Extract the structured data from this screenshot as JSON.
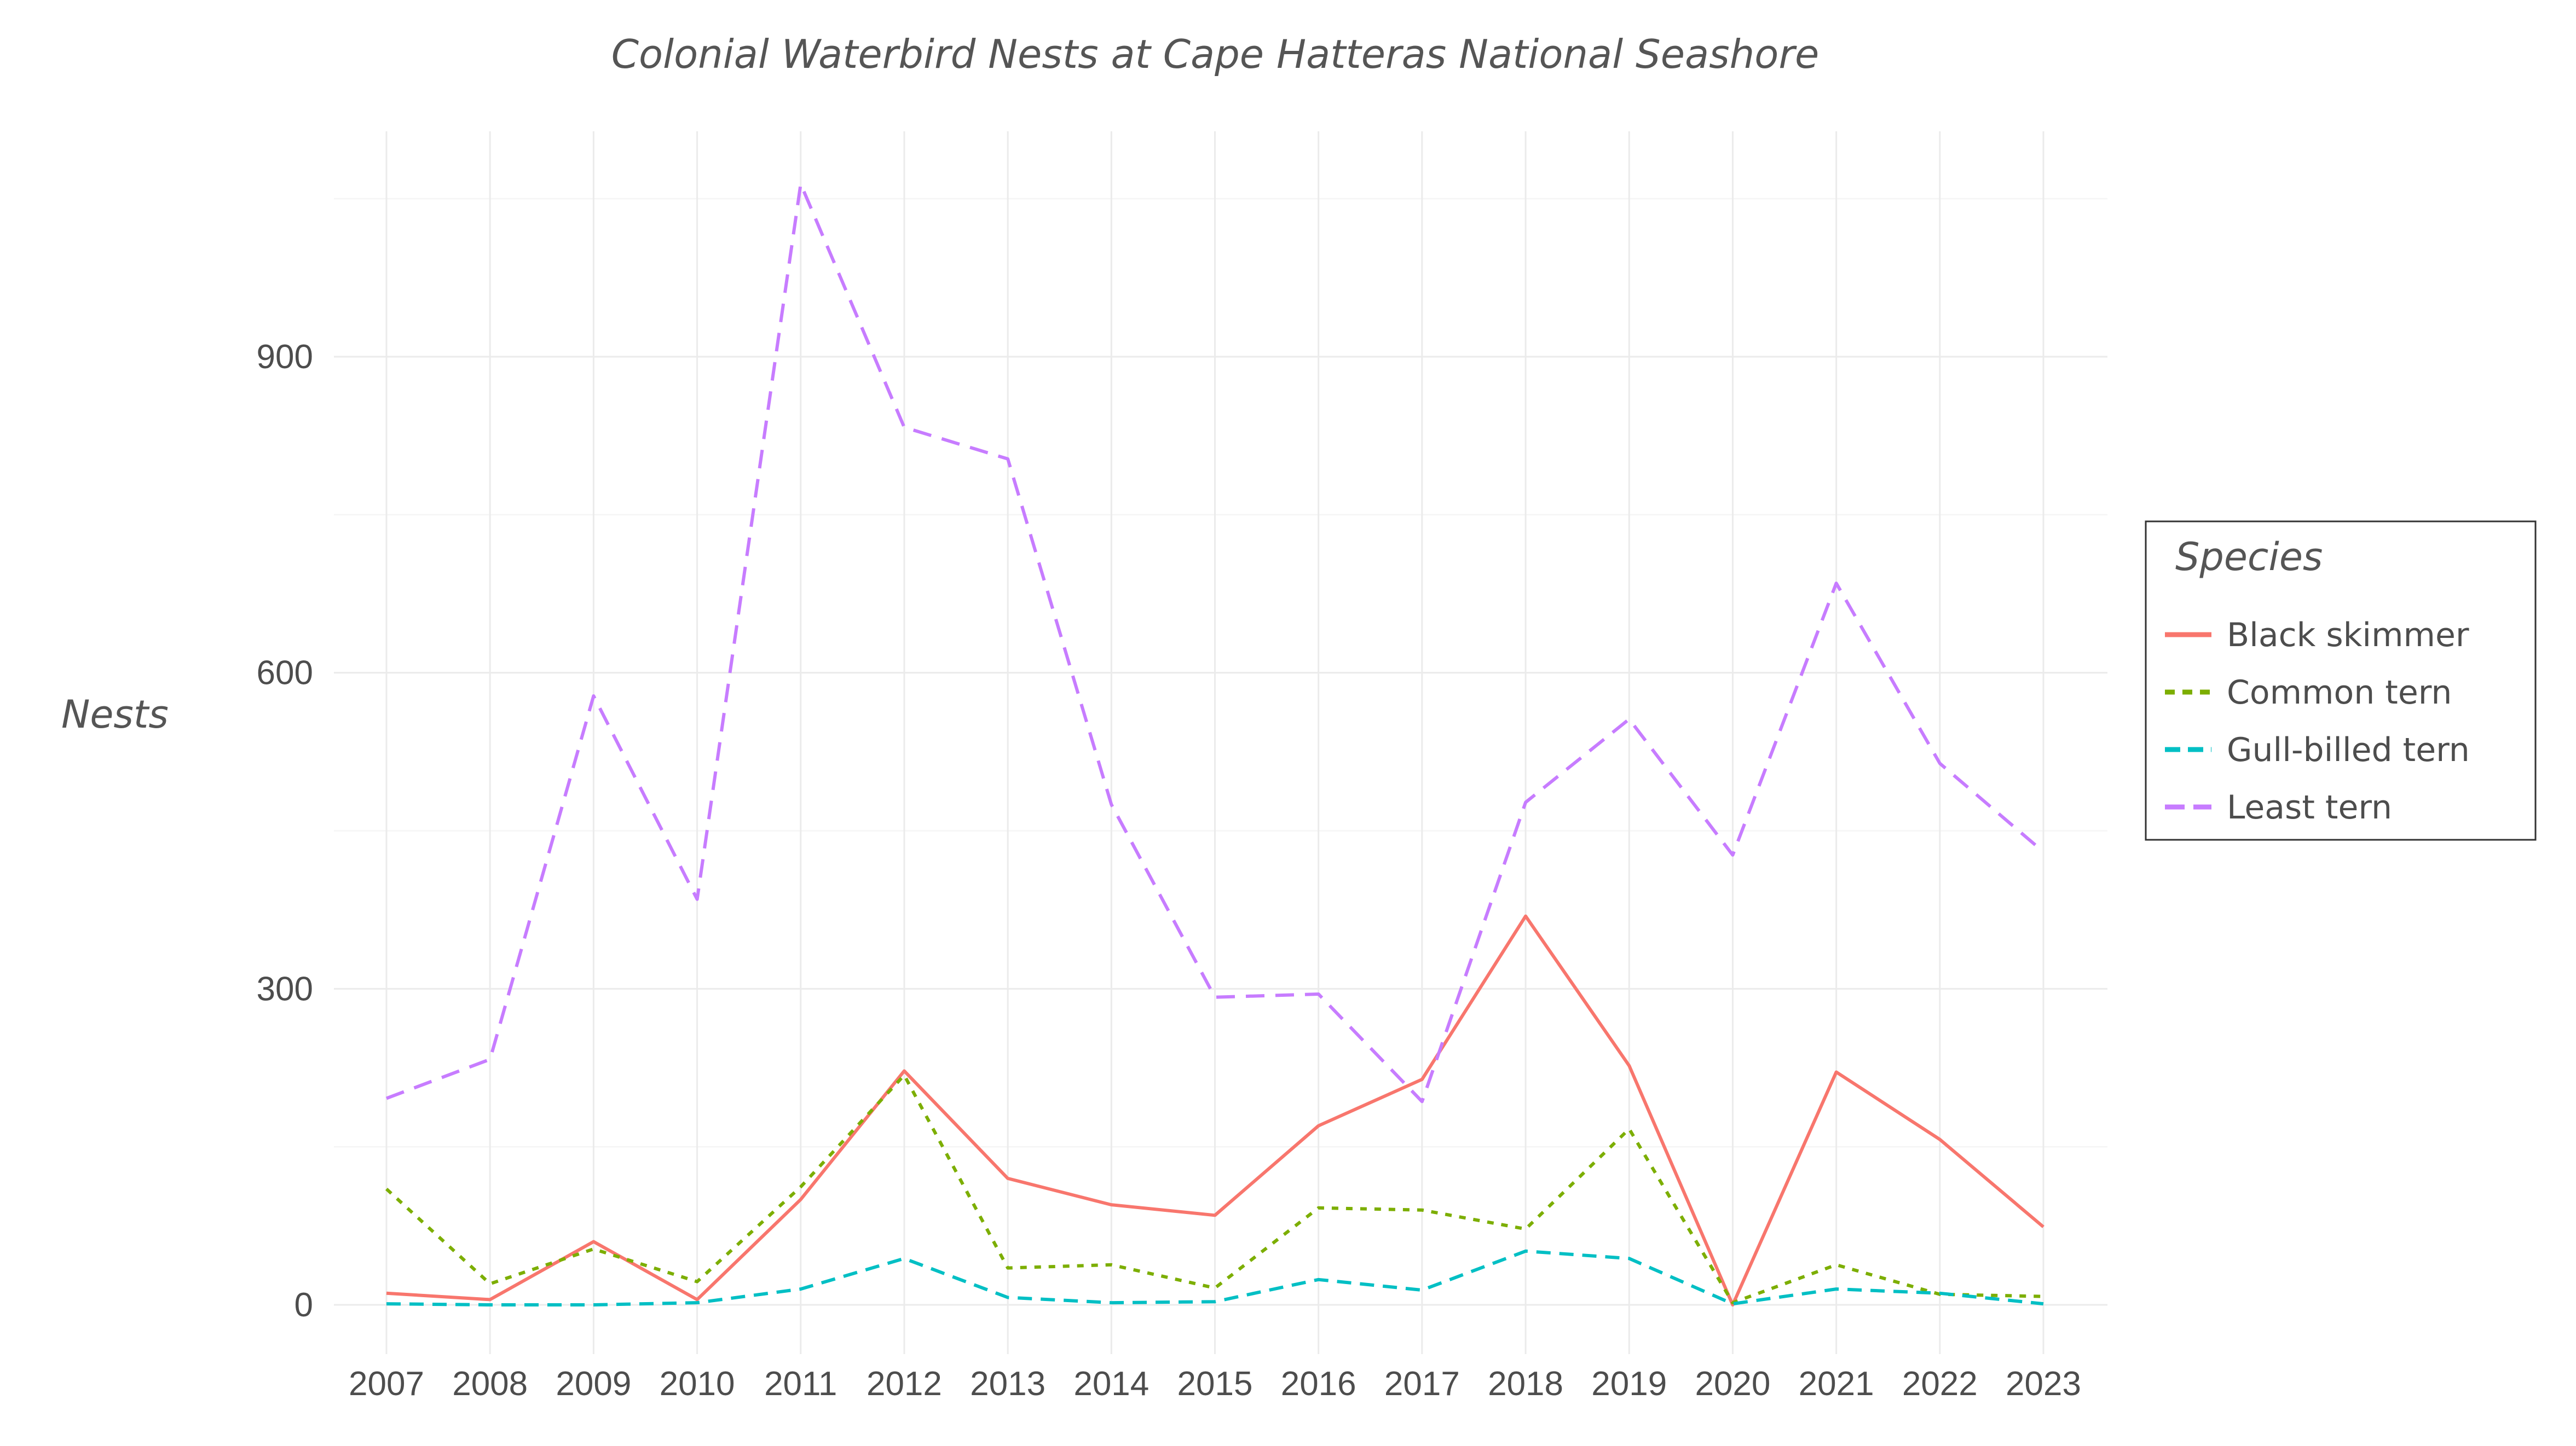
{
  "chart_data": {
    "type": "line",
    "title": "Colonial Waterbird Nests at Cape Hatteras National Seashore",
    "ylabel": "Nests",
    "xlabel": "",
    "ylim": [
      -60,
      1120
    ],
    "yticks": [
      0,
      300,
      600,
      900
    ],
    "grid": true,
    "legend": {
      "title": "Species",
      "position": "right"
    },
    "categories": [
      "2007",
      "2008",
      "2009",
      "2010",
      "2011",
      "2012",
      "2013",
      "2014",
      "2015",
      "2016",
      "2017",
      "2018",
      "2019",
      "2020",
      "2021",
      "2022",
      "2023"
    ],
    "series": [
      {
        "name": "Black skimmer",
        "color": "#F8766D",
        "dash": "solid",
        "values": [
          11,
          5,
          60,
          5,
          100,
          222,
          120,
          95,
          85,
          170,
          214,
          369,
          227,
          0,
          221,
          157,
          74
        ]
      },
      {
        "name": "Common tern",
        "color": "#7CAE00",
        "dash": "dot",
        "values": [
          110,
          20,
          53,
          22,
          112,
          218,
          35,
          38,
          16,
          92,
          90,
          72,
          167,
          2,
          38,
          10,
          8
        ]
      },
      {
        "name": "Gull-billed tern",
        "color": "#00BFC4",
        "dash": "dash",
        "values": [
          1,
          0,
          0,
          2,
          15,
          44,
          7,
          2,
          3,
          24,
          14,
          51,
          44,
          1,
          15,
          11,
          1
        ]
      },
      {
        "name": "Least tern",
        "color": "#C77CFF",
        "dash": "longdash",
        "values": [
          196,
          233,
          578,
          385,
          1064,
          833,
          803,
          475,
          292,
          295,
          193,
          477,
          556,
          427,
          685,
          514,
          430
        ]
      }
    ]
  }
}
